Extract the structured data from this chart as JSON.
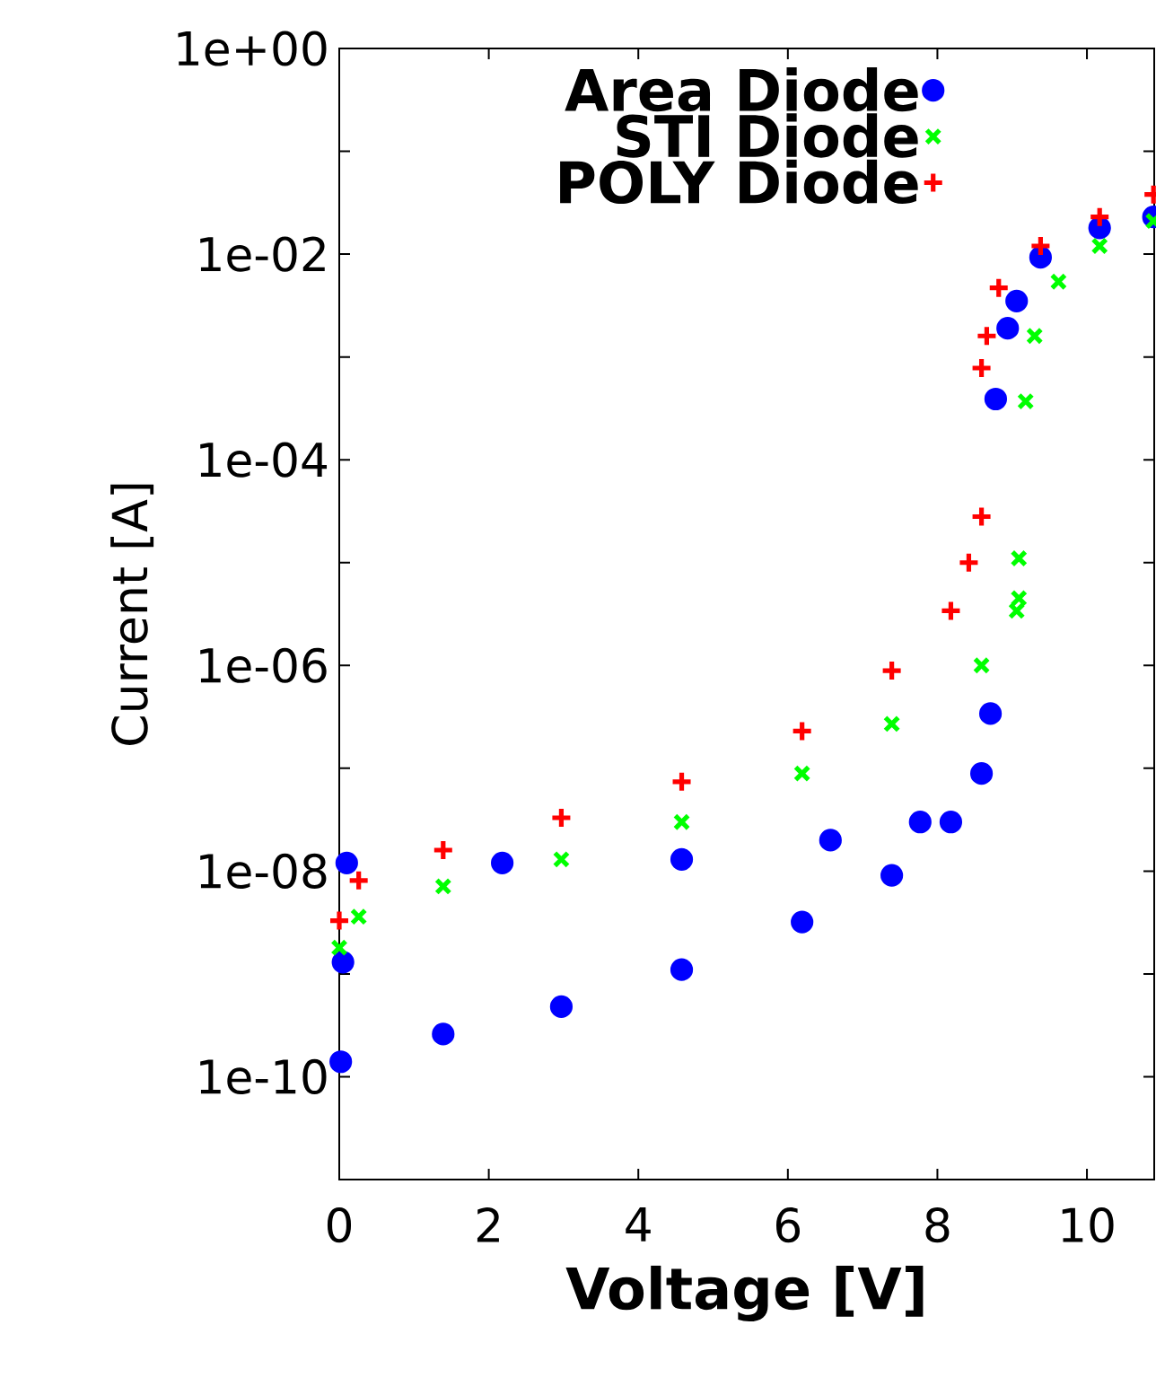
{
  "chart_data": {
    "type": "scatter",
    "xlabel": "Voltage [V]",
    "ylabel": "Current [A]",
    "xlim": [
      0,
      10.9
    ],
    "ylim": [
      1e-11,
      1
    ],
    "log": "y",
    "grid": false,
    "legend": "top left",
    "xticks": [
      0,
      2,
      4,
      6,
      8,
      10
    ],
    "yticks": [
      {
        "value": 1,
        "label": "1e+00"
      },
      {
        "value": 0.1,
        "label": null
      },
      {
        "value": 0.01,
        "label": "1e-02"
      },
      {
        "value": 0.001,
        "label": null
      },
      {
        "value": 0.0001,
        "label": "1e-04"
      },
      {
        "value": 1e-05,
        "label": null
      },
      {
        "value": 1e-06,
        "label": "1e-06"
      },
      {
        "value": 1e-07,
        "label": null
      },
      {
        "value": 1e-08,
        "label": "1e-08"
      },
      {
        "value": 1e-09,
        "label": null
      },
      {
        "value": 1e-10,
        "label": "1e-10"
      },
      {
        "value": 1e-11,
        "label": null
      }
    ],
    "series": [
      {
        "name": "Area Diode",
        "color": "#0000ff",
        "marker": "circle",
        "x": [
          0.02,
          1.39,
          2.97,
          4.58,
          6.19,
          7.39,
          8.18,
          8.59,
          8.71,
          0.05,
          0.1,
          2.18,
          4.58,
          6.57,
          7.77,
          8.78,
          8.94,
          9.06,
          9.38,
          10.17,
          10.89
        ],
        "values": [
          1.4e-10,
          2.6e-10,
          4.8e-10,
          1.1e-09,
          3.2e-09,
          9.1e-09,
          3e-08,
          8.9e-08,
          3.4e-07,
          1.3e-09,
          1.2e-08,
          1.2e-08,
          1.3e-08,
          2e-08,
          3e-08,
          0.00039,
          0.0019,
          0.0035,
          0.0093,
          0.018,
          0.023
        ]
      },
      {
        "name": "STI Diode",
        "color": "#00ff00",
        "marker": "cross",
        "x": [
          0,
          0.26,
          1.39,
          2.97,
          4.58,
          6.19,
          7.39,
          8.59,
          9.06,
          9.09,
          9.09,
          9.18,
          9.3,
          9.62,
          10.17,
          10.89
        ],
        "values": [
          1.8e-09,
          3.6e-09,
          7.1e-09,
          1.3e-08,
          3e-08,
          8.9e-08,
          2.7e-07,
          1e-06,
          3.4e-06,
          4.5e-06,
          1.1e-05,
          0.00037,
          0.0016,
          0.0054,
          0.012,
          0.021
        ]
      },
      {
        "name": "POLY Diode",
        "color": "#ff0000",
        "marker": "plus",
        "x": [
          0,
          0.26,
          1.39,
          2.97,
          4.58,
          6.19,
          7.39,
          8.18,
          8.42,
          8.59,
          8.59,
          8.66,
          8.82,
          9.38,
          10.17,
          10.89
        ],
        "values": [
          3.3e-09,
          8.1e-09,
          1.6e-08,
          3.3e-08,
          7.4e-08,
          2.3e-07,
          8.9e-07,
          3.4e-06,
          1e-05,
          2.8e-05,
          0.00078,
          0.0016,
          0.0047,
          0.012,
          0.023,
          0.038
        ]
      }
    ]
  }
}
